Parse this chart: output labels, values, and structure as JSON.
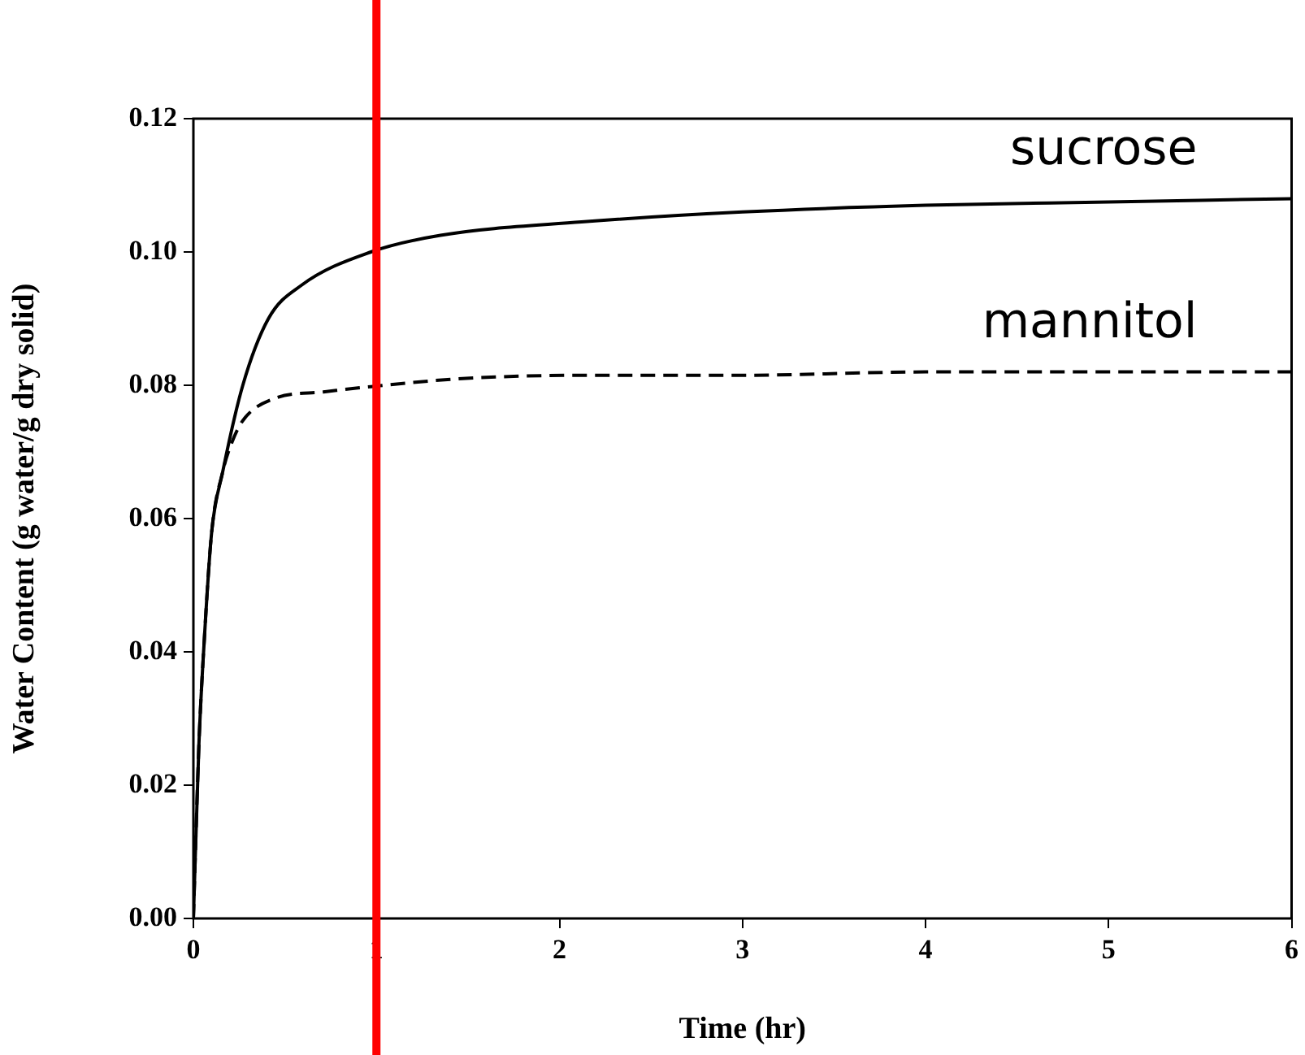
{
  "chart_data": {
    "type": "line",
    "xlabel": "Time (hr)",
    "ylabel": "Water Content (g water/g dry solid)",
    "xlim": [
      0,
      6
    ],
    "xticks": [
      0,
      1,
      2,
      3,
      4,
      5,
      6
    ],
    "ylim": [
      0,
      0.12
    ],
    "yticks": [
      {
        "value": 0,
        "label": "0.00"
      },
      {
        "value": 0.02,
        "label": "0.02"
      },
      {
        "value": 0.04,
        "label": "0.04"
      },
      {
        "value": 0.06,
        "label": "0.06"
      },
      {
        "value": 0.08,
        "label": "0.08"
      },
      {
        "value": 0.1,
        "label": "0.10"
      },
      {
        "value": 0.12,
        "label": "0.12"
      }
    ],
    "grid": false,
    "legend": false,
    "marker": "none",
    "series": [
      {
        "name": "sucrose",
        "color": "#000000",
        "line_style": "solid",
        "x": [
          0,
          0.03,
          0.06,
          0.1,
          0.16,
          0.27,
          0.41,
          0.59,
          0.97,
          1.35,
          2.12,
          3,
          4,
          5,
          6
        ],
        "values": [
          0,
          0.026,
          0.042,
          0.058,
          0.067,
          0.08,
          0.09,
          0.095,
          0.1,
          0.1025,
          0.1045,
          0.106,
          0.107,
          0.1075,
          0.108
        ]
      },
      {
        "name": "mannitol",
        "color": "#000000",
        "line_style": "dashed",
        "x": [
          0,
          0.03,
          0.06,
          0.1,
          0.16,
          0.21,
          0.27,
          0.44,
          0.71,
          0.97,
          1.47,
          2.12,
          3,
          4,
          5,
          6
        ],
        "values": [
          0,
          0.026,
          0.042,
          0.058,
          0.067,
          0.0714,
          0.0747,
          0.078,
          0.079,
          0.0798,
          0.081,
          0.0815,
          0.0815,
          0.082,
          0.082,
          0.082
        ]
      }
    ],
    "ref_lines": [
      {
        "axis": "x",
        "value": 1,
        "color": "#ff0000",
        "line_style": "solid"
      }
    ]
  }
}
